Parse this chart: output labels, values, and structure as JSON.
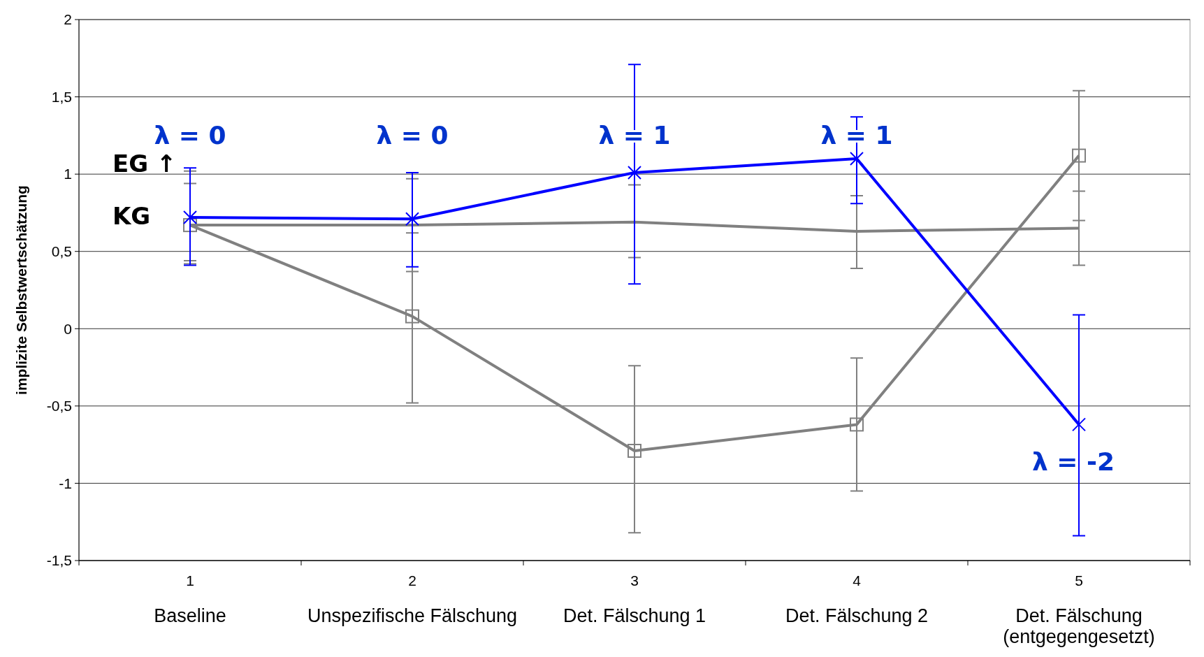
{
  "chart_data": {
    "type": "line",
    "ylabel": "implizite Selbstwertschätzung",
    "categories": [
      "1",
      "2",
      "3",
      "4",
      "5"
    ],
    "ylim": [
      -1.5,
      2
    ],
    "yticks": [
      {
        "value": -1.5,
        "label": "-1,5"
      },
      {
        "value": -1,
        "label": "-1"
      },
      {
        "value": -0.5,
        "label": "-0,5"
      },
      0,
      {
        "value": 0.5,
        "label": "0,5"
      },
      1,
      {
        "value": 1.5,
        "label": "1,5"
      },
      2
    ],
    "grid": "y",
    "series": [
      {
        "color": "#808080",
        "marker": "none",
        "values": [
          0.67,
          0.67,
          0.69,
          0.63,
          0.65
        ],
        "errors": [
          [
            0.44,
            1.02
          ],
          [
            0.37,
            0.97
          ],
          [
            0.46,
            0.93
          ],
          [
            0.39,
            0.86
          ],
          [
            0.41,
            0.89
          ]
        ]
      },
      {
        "color": "#808080",
        "marker": "square",
        "values": [
          0.67,
          0.08,
          -0.79,
          -0.62,
          1.12
        ],
        "errors": [
          [
            0.42,
            0.94
          ],
          [
            -0.48,
            0.62
          ],
          [
            -1.32,
            -0.24
          ],
          [
            -1.05,
            -0.19
          ],
          [
            0.7,
            1.54
          ]
        ]
      },
      {
        "color": "#0000ff",
        "marker": "cross",
        "values": [
          0.72,
          0.71,
          1.01,
          1.1,
          -0.62
        ],
        "errors": [
          [
            0.41,
            1.04
          ],
          [
            0.4,
            1.01
          ],
          [
            0.29,
            1.71
          ],
          [
            0.81,
            1.37
          ],
          [
            -1.34,
            0.09
          ]
        ]
      }
    ],
    "annotations": [
      "λ = 0",
      "λ = 0",
      "λ = 1",
      "λ = 1",
      "λ = -2",
      "EG ↑",
      "KG",
      "Baseline",
      "Unspezifische Fälschung",
      "Det. Fälschung 1",
      "Det. Fälschung 2",
      "Det. Fälschung (entgegengesetzt)"
    ]
  }
}
